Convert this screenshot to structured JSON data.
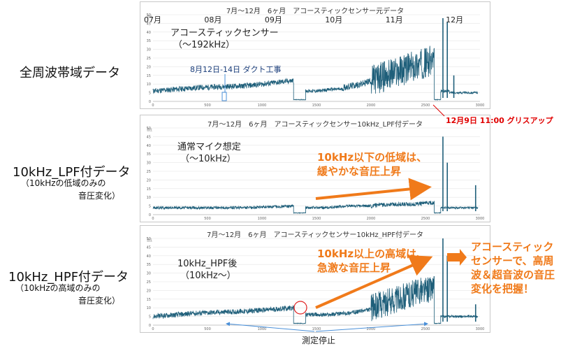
{
  "left_labels": {
    "row1": "全周波帯域データ",
    "row2": "10kHz_LPF付データ",
    "row2_sub1": "（10kHzの低域のみの",
    "row2_sub2": "音圧変化）",
    "row3": "10kHz_HPF付データ",
    "row3_sub1": "（10kHzの高域のみの",
    "row3_sub2": "音圧変化）"
  },
  "annotations": {
    "duct_work": "8月12日-14日 ダクト工事",
    "grease_up": "12月9日 11:00 グリスアップ",
    "lpf_note_1": "10kHz以下の低域は、",
    "lpf_note_2": "緩やかな音圧上昇",
    "hpf_note_1": "10kHz以上の高域は、",
    "hpf_note_2": "急激な音圧上昇",
    "summary_1": "アコースティック",
    "summary_2": "センサーで、高周",
    "summary_3": "波＆超音波の音圧",
    "summary_4": "変化を把握！",
    "stop": "測定停止"
  },
  "months": [
    "07月",
    "08月",
    "09月",
    "10月",
    "11月",
    "12月"
  ],
  "colors": {
    "series": "#1f5f7a",
    "orange": "#f07a1a",
    "red": "#e00000",
    "blue": "#4a90d9"
  },
  "chart_data": [
    {
      "type": "line",
      "title": "7月～12月　6ヶ月　アコースティックセンサー元データ",
      "series_label_1": "アコースティックセンサー",
      "series_label_2": "（～192kHz）",
      "ylabel": "音圧",
      "xlim": [
        0,
        3000
      ],
      "ylim": [
        0,
        50
      ],
      "xticks": [
        0,
        500,
        1000,
        1500,
        2000,
        2500,
        3000
      ],
      "yticks": [
        0,
        5,
        10,
        15,
        20,
        25,
        30,
        35,
        40,
        45,
        50
      ],
      "segments": [
        {
          "x0": 0,
          "x1": 1290,
          "base": [
            6,
            8,
            9,
            12
          ],
          "noise": 1.6
        },
        {
          "x0": 1290,
          "x1": 1400,
          "base": [
            1,
            1,
            1,
            1
          ],
          "noise": 0.2
        },
        {
          "x0": 1400,
          "x1": 1750,
          "base": [
            6,
            6,
            7,
            7
          ],
          "noise": 1.0
        },
        {
          "x0": 1750,
          "x1": 2000,
          "base": [
            8,
            9,
            10,
            12
          ],
          "noise": 2.0
        },
        {
          "x0": 2000,
          "x1": 2580,
          "base": [
            12,
            16,
            20,
            24
          ],
          "noise": 9.0
        },
        {
          "x0": 2580,
          "x1": 2640,
          "base": [
            1,
            1,
            1,
            1
          ],
          "noise": 0.2
        },
        {
          "x0": 2640,
          "x1": 2720,
          "base": [
            6,
            6,
            6,
            6
          ],
          "noise": 0.8
        },
        {
          "x0": 2720,
          "x1": 2980,
          "base": [
            5,
            5,
            5,
            5
          ],
          "noise": 0.6
        }
      ],
      "spikes": [
        [
          2660,
          48
        ],
        [
          2700,
          46
        ],
        [
          2760,
          15
        ]
      ]
    },
    {
      "type": "line",
      "title": "7月～12月　6ヶ月　アコースティックセンサー10kHz_LPF付データ",
      "series_label_1": "通常マイク想定",
      "series_label_2": "（～10kHz）",
      "ylabel": "音圧",
      "xlim": [
        0,
        3000
      ],
      "ylim": [
        0,
        50
      ],
      "xticks": [
        0,
        500,
        1000,
        1500,
        2000,
        2500,
        3000
      ],
      "yticks": [
        0,
        5,
        10,
        15,
        20,
        25,
        30,
        35,
        40,
        45,
        50
      ],
      "segments": [
        {
          "x0": 0,
          "x1": 1290,
          "base": [
            4,
            4,
            4,
            5
          ],
          "noise": 0.8
        },
        {
          "x0": 1290,
          "x1": 1400,
          "base": [
            1,
            1,
            1,
            1
          ],
          "noise": 0.2
        },
        {
          "x0": 1400,
          "x1": 2000,
          "base": [
            4,
            4,
            5,
            5
          ],
          "noise": 0.8
        },
        {
          "x0": 2000,
          "x1": 2580,
          "base": [
            5,
            6,
            6,
            7
          ],
          "noise": 1.2
        },
        {
          "x0": 2580,
          "x1": 2640,
          "base": [
            1,
            1,
            1,
            1
          ],
          "noise": 0.2
        },
        {
          "x0": 2640,
          "x1": 2980,
          "base": [
            4,
            4,
            4,
            4
          ],
          "noise": 0.6
        }
      ],
      "spikes": [
        [
          2660,
          45
        ],
        [
          2700,
          30
        ],
        [
          2960,
          17
        ]
      ]
    },
    {
      "type": "line",
      "title": "7月～12月　6ヶ月　アコースティックセンサー10kHz_HPF付データ",
      "series_label_1": "10kHz_HPF後",
      "series_label_2": "（10kHz～）",
      "ylabel": "音圧",
      "xlim": [
        0,
        3000
      ],
      "ylim": [
        0,
        50
      ],
      "xticks": [
        0,
        500,
        1000,
        1500,
        2000,
        2500,
        3000
      ],
      "yticks": [
        0,
        5,
        10,
        15,
        20,
        25,
        30,
        35,
        40,
        45,
        50
      ],
      "segments": [
        {
          "x0": 0,
          "x1": 1290,
          "base": [
            5,
            7,
            8,
            10
          ],
          "noise": 1.5
        },
        {
          "x0": 1290,
          "x1": 1400,
          "base": [
            1,
            1,
            1,
            1
          ],
          "noise": 0.2
        },
        {
          "x0": 1400,
          "x1": 2000,
          "base": [
            6,
            6,
            7,
            9
          ],
          "noise": 1.2
        },
        {
          "x0": 2000,
          "x1": 2580,
          "base": [
            10,
            14,
            18,
            22
          ],
          "noise": 8.0
        },
        {
          "x0": 2580,
          "x1": 2640,
          "base": [
            1,
            1,
            1,
            1
          ],
          "noise": 0.2
        },
        {
          "x0": 2640,
          "x1": 2980,
          "base": [
            5,
            5,
            5,
            5
          ],
          "noise": 0.7
        }
      ],
      "spikes": [
        [
          2660,
          50
        ],
        [
          2700,
          40
        ],
        [
          2960,
          12
        ]
      ]
    }
  ]
}
